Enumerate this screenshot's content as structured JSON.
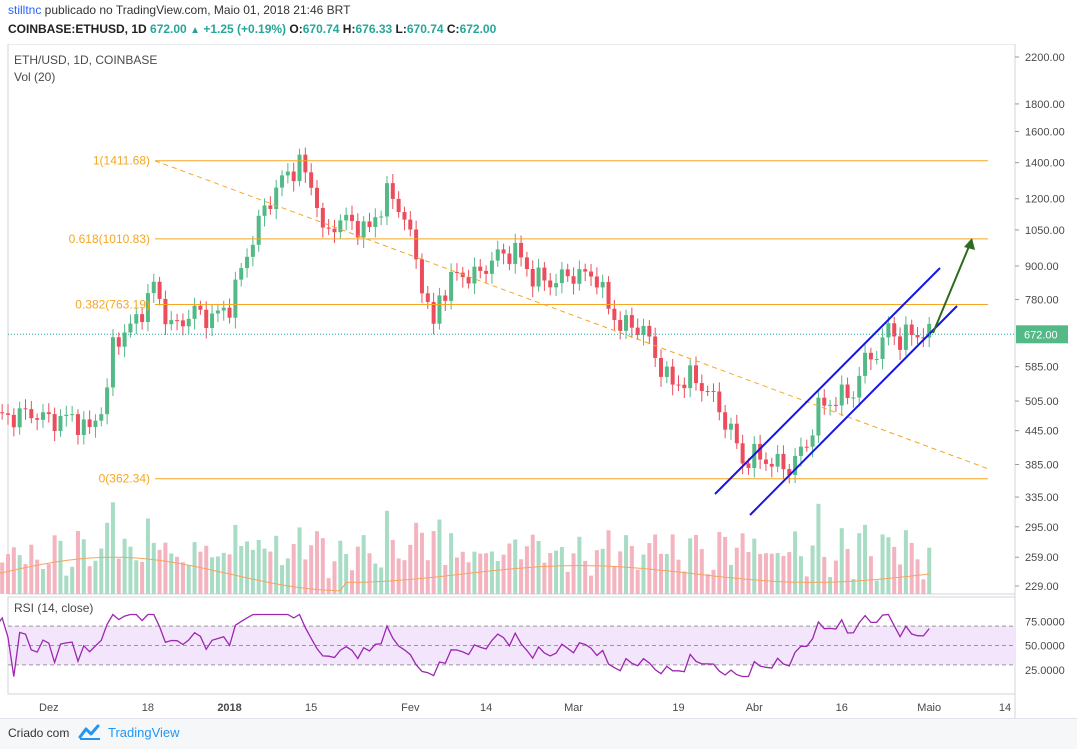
{
  "header": {
    "author": "stilltnc",
    "published": " publicado no TradingView.com, Maio 01, 2018 21:46 BRT",
    "symbol": "COINBASE:ETHUSD, 1D",
    "last": "672.00",
    "change": "+1.25 (+0.19%)",
    "o_label": "O:",
    "o_value": "670.74",
    "h_label": "H:",
    "h_value": "676.33",
    "l_label": "L:",
    "l_value": "670.74",
    "c_label": "C:",
    "c_value": "672.00"
  },
  "chart_data": {
    "type": "candlestick",
    "title": "ETH/USD, 1D, COINBASE",
    "volume_label": "Vol (20)",
    "rsi_label": "RSI (14, close)",
    "price_scale": "log",
    "y_ticks": [
      2200,
      1800,
      1600,
      1400,
      1200,
      1050,
      900,
      780,
      672,
      585,
      505,
      445,
      385,
      335,
      295,
      259,
      229
    ],
    "y_tick_labels": [
      "2200.00",
      "1800.00",
      "1600.00",
      "1400.00",
      "1200.00",
      "1050.00",
      "900.00",
      "780.00",
      "672.00",
      "585.00",
      "505.00",
      "445.00",
      "385.00",
      "335.00",
      "295.00",
      "259.00",
      "229.00"
    ],
    "last_price_label": "672.00",
    "rsi_ticks": [
      75,
      50,
      25
    ],
    "rsi_tick_labels": [
      "75.0000",
      "50.0000",
      "25.0000"
    ],
    "x_labels": [
      "Dez",
      "18",
      "2018",
      "15",
      "Fev",
      "14",
      "Mar",
      "19",
      "Abr",
      "16",
      "Maio",
      "14"
    ],
    "x_label_dates": [
      "2017-12-01",
      "2017-12-18",
      "2018-01-01",
      "2018-01-15",
      "2018-02-01",
      "2018-02-14",
      "2018-03-01",
      "2018-03-19",
      "2018-04-01",
      "2018-04-16",
      "2018-05-01",
      "2018-05-14"
    ],
    "fib_levels": [
      {
        "label": "1(1411.68)",
        "value": 1411.68
      },
      {
        "label": "0.618(1010.83)",
        "value": 1010.83
      },
      {
        "label": "0.382(763.19)",
        "value": 763.19
      },
      {
        "label": "0(362.34)",
        "value": 362.34
      }
    ],
    "closes": [
      {
        "date": "2017-11-24",
        "close": 472
      },
      {
        "date": "2017-11-28",
        "close": 480
      },
      {
        "date": "2017-12-01",
        "close": 466
      },
      {
        "date": "2017-12-05",
        "close": 470
      },
      {
        "date": "2017-12-08",
        "close": 445
      },
      {
        "date": "2017-12-11",
        "close": 520
      },
      {
        "date": "2017-12-12",
        "close": 650
      },
      {
        "date": "2017-12-15",
        "close": 690
      },
      {
        "date": "2017-12-18",
        "close": 780
      },
      {
        "date": "2017-12-19",
        "close": 830
      },
      {
        "date": "2017-12-22",
        "close": 690
      },
      {
        "date": "2017-12-26",
        "close": 740
      },
      {
        "date": "2017-12-29",
        "close": 720
      },
      {
        "date": "2018-01-01",
        "close": 760
      },
      {
        "date": "2018-01-04",
        "close": 950
      },
      {
        "date": "2018-01-07",
        "close": 1150
      },
      {
        "date": "2018-01-10",
        "close": 1300
      },
      {
        "date": "2018-01-13",
        "close": 1400
      },
      {
        "date": "2018-01-16",
        "close": 1200
      },
      {
        "date": "2018-01-17",
        "close": 1020
      },
      {
        "date": "2018-01-20",
        "close": 1100
      },
      {
        "date": "2018-01-25",
        "close": 1050
      },
      {
        "date": "2018-01-28",
        "close": 1230
      },
      {
        "date": "2018-01-31",
        "close": 1120
      },
      {
        "date": "2018-02-02",
        "close": 920
      },
      {
        "date": "2018-02-05",
        "close": 690
      },
      {
        "date": "2018-02-06",
        "close": 790
      },
      {
        "date": "2018-02-09",
        "close": 870
      },
      {
        "date": "2018-02-12",
        "close": 860
      },
      {
        "date": "2018-02-16",
        "close": 940
      },
      {
        "date": "2018-02-19",
        "close": 960
      },
      {
        "date": "2018-02-22",
        "close": 860
      },
      {
        "date": "2018-02-25",
        "close": 840
      },
      {
        "date": "2018-03-01",
        "close": 870
      },
      {
        "date": "2018-03-05",
        "close": 860
      },
      {
        "date": "2018-03-07",
        "close": 750
      },
      {
        "date": "2018-03-09",
        "close": 700
      },
      {
        "date": "2018-03-13",
        "close": 690
      },
      {
        "date": "2018-03-15",
        "close": 610
      },
      {
        "date": "2018-03-18",
        "close": 540
      },
      {
        "date": "2018-03-21",
        "close": 560
      },
      {
        "date": "2018-03-24",
        "close": 530
      },
      {
        "date": "2018-03-28",
        "close": 445
      },
      {
        "date": "2018-03-30",
        "close": 390
      },
      {
        "date": "2018-04-01",
        "close": 400
      },
      {
        "date": "2018-04-05",
        "close": 385
      },
      {
        "date": "2018-04-07",
        "close": 380
      },
      {
        "date": "2018-04-10",
        "close": 420
      },
      {
        "date": "2018-04-12",
        "close": 490
      },
      {
        "date": "2018-04-15",
        "close": 510
      },
      {
        "date": "2018-04-18",
        "close": 525
      },
      {
        "date": "2018-04-20",
        "close": 600
      },
      {
        "date": "2018-04-23",
        "close": 640
      },
      {
        "date": "2018-04-24",
        "close": 700
      },
      {
        "date": "2018-04-26",
        "close": 650
      },
      {
        "date": "2018-04-28",
        "close": 680
      },
      {
        "date": "2018-04-30",
        "close": 670
      },
      {
        "date": "2018-05-01",
        "close": 672
      }
    ]
  },
  "footer": {
    "created": "Criado com",
    "brand": "TradingView"
  }
}
